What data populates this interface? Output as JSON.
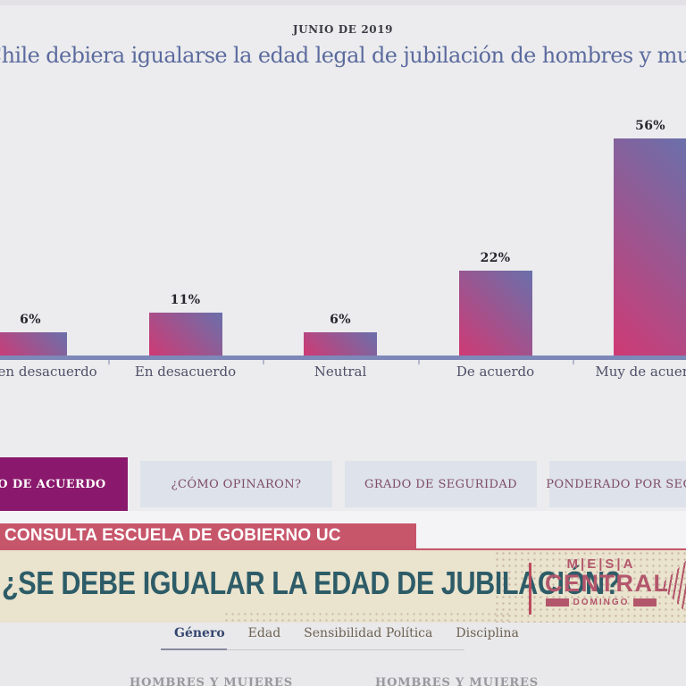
{
  "header": {
    "date_label": "JUNIO DE 2019",
    "question_title": "En Chile debiera igualarse la edad legal de jubilación de hombres y mujeres"
  },
  "chart_data": {
    "type": "bar",
    "title": "En Chile debiera igualarse la edad legal de jubilación de hombres y mujeres",
    "subtitle": "JUNIO DE 2019",
    "categories": [
      "Muy en desacuerdo",
      "En desacuerdo",
      "Neutral",
      "De acuerdo",
      "Muy de acuerdo"
    ],
    "values": [
      6,
      11,
      6,
      22,
      56
    ],
    "value_labels": [
      "6%",
      "11%",
      "6%",
      "22%",
      "56%"
    ],
    "xlabel": "",
    "ylabel": "",
    "ylim": [
      0,
      60
    ],
    "grid": "off",
    "legend": "none",
    "bar_gradient": [
      "#cf3a74",
      "#6a70ab"
    ],
    "axis_color": "#7d87b8"
  },
  "view_tabs": [
    {
      "label": "GRADO DE ACUERDO",
      "active": true
    },
    {
      "label": "¿CÓMO OPINARON?",
      "active": false
    },
    {
      "label": "GRADO DE SEGURIDAD",
      "active": false
    },
    {
      "label": "PONDERADO POR SEGURIDAD",
      "active": false
    }
  ],
  "banner": {
    "kicker": "CONSULTA ESCUELA DE GOBIERNO UC",
    "headline": "¿SE DEBE IGUALAR LA EDAD DE JUBILACIÓN?"
  },
  "logo": {
    "top_word": "M|E|S|A",
    "main_word": "CENTRAL",
    "sub_word": "DOMINGO"
  },
  "bottom_tabs": [
    {
      "label": "Género",
      "active": true
    },
    {
      "label": "Edad",
      "active": false
    },
    {
      "label": "Sensibilidad Política",
      "active": false
    },
    {
      "label": "Disciplina",
      "active": false
    }
  ],
  "bottom_partial": {
    "left": "HOMBRES Y MUJERES",
    "right": "HOMBRES Y MUJERES"
  },
  "colors": {
    "background": "#ececee",
    "title_blue": "#5c6b9e",
    "active_tab_magenta": "#8a186c",
    "inactive_tab_bg": "#dee2ea",
    "inactive_tab_text": "#7d4b67",
    "kicker_rose": "#c7566b",
    "cream": "#eae3cd",
    "headline_teal": "#2d5c68",
    "logo_rose": "#b3566c"
  }
}
